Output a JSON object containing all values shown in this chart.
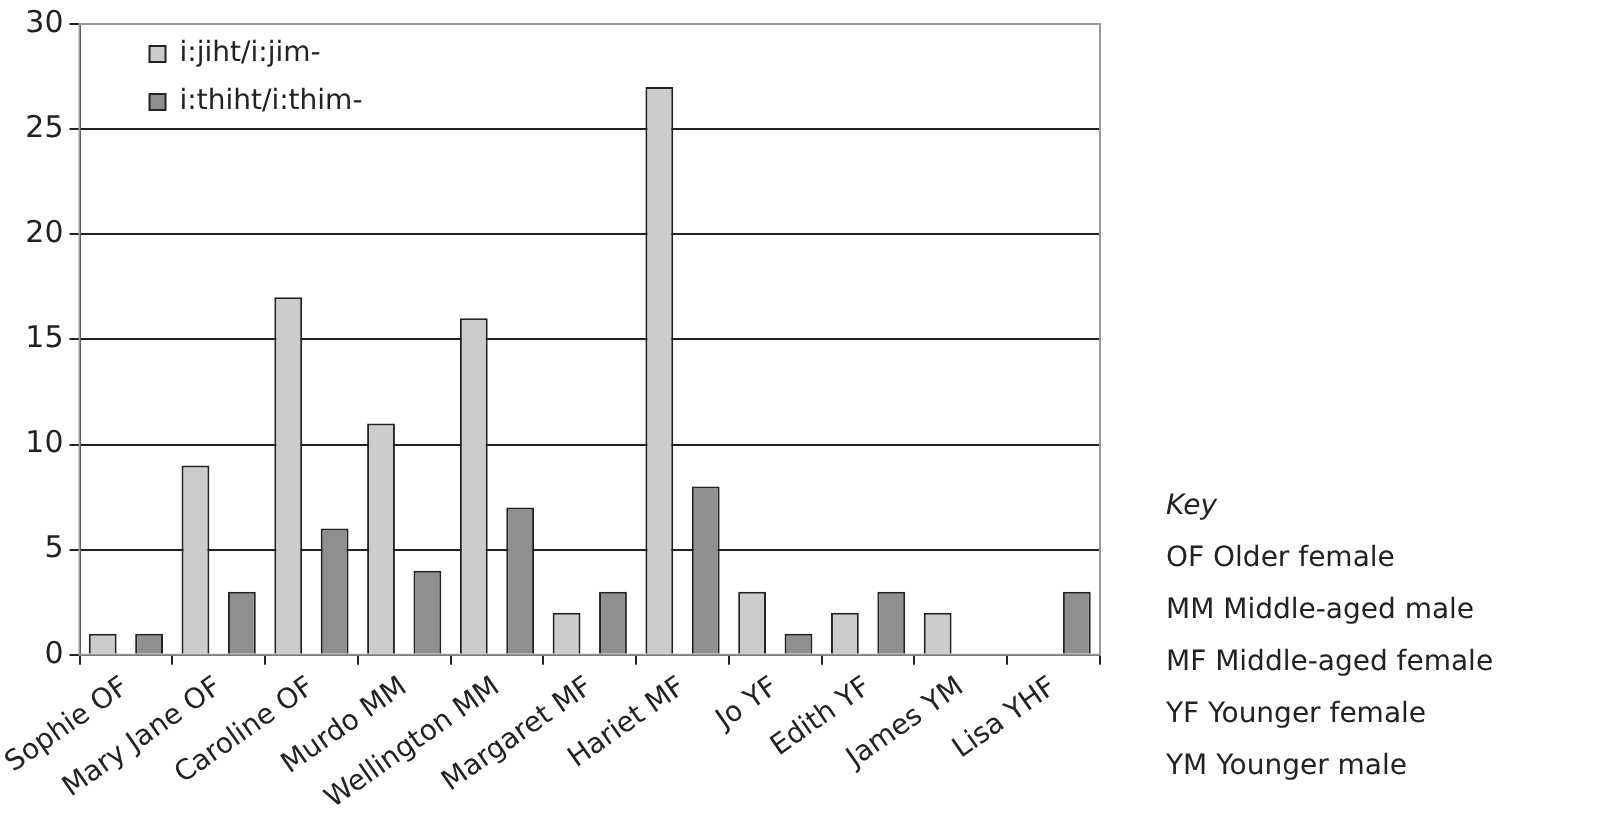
{
  "chart_data": {
    "type": "bar",
    "categories": [
      "Sophie OF",
      "Mary Jane OF",
      "Caroline OF",
      "Murdo MM",
      "Wellington MM",
      "Margaret MF",
      "Hariet MF",
      "Jo YF",
      "Edith YF",
      "James YM",
      "Lisa YHF"
    ],
    "series": [
      {
        "name": "i:jiht/i:jim-",
        "color": "#cccccc",
        "values": [
          1,
          9,
          17,
          11,
          16,
          2,
          27,
          3,
          2,
          2,
          0
        ]
      },
      {
        "name": "i:thiht/i:thim-",
        "color": "#8f8f8f",
        "values": [
          1,
          3,
          6,
          4,
          7,
          3,
          8,
          1,
          3,
          0,
          3
        ]
      }
    ],
    "ylim": [
      0,
      30
    ],
    "yticks": [
      0,
      5,
      10,
      15,
      20,
      25,
      30
    ],
    "grid": "y",
    "legend": "top left",
    "annotations": [
      "Key",
      "OF Older female",
      "MM Middle-aged male",
      "MF Middle-aged female",
      "YF Younger female",
      "YM Younger male"
    ]
  }
}
